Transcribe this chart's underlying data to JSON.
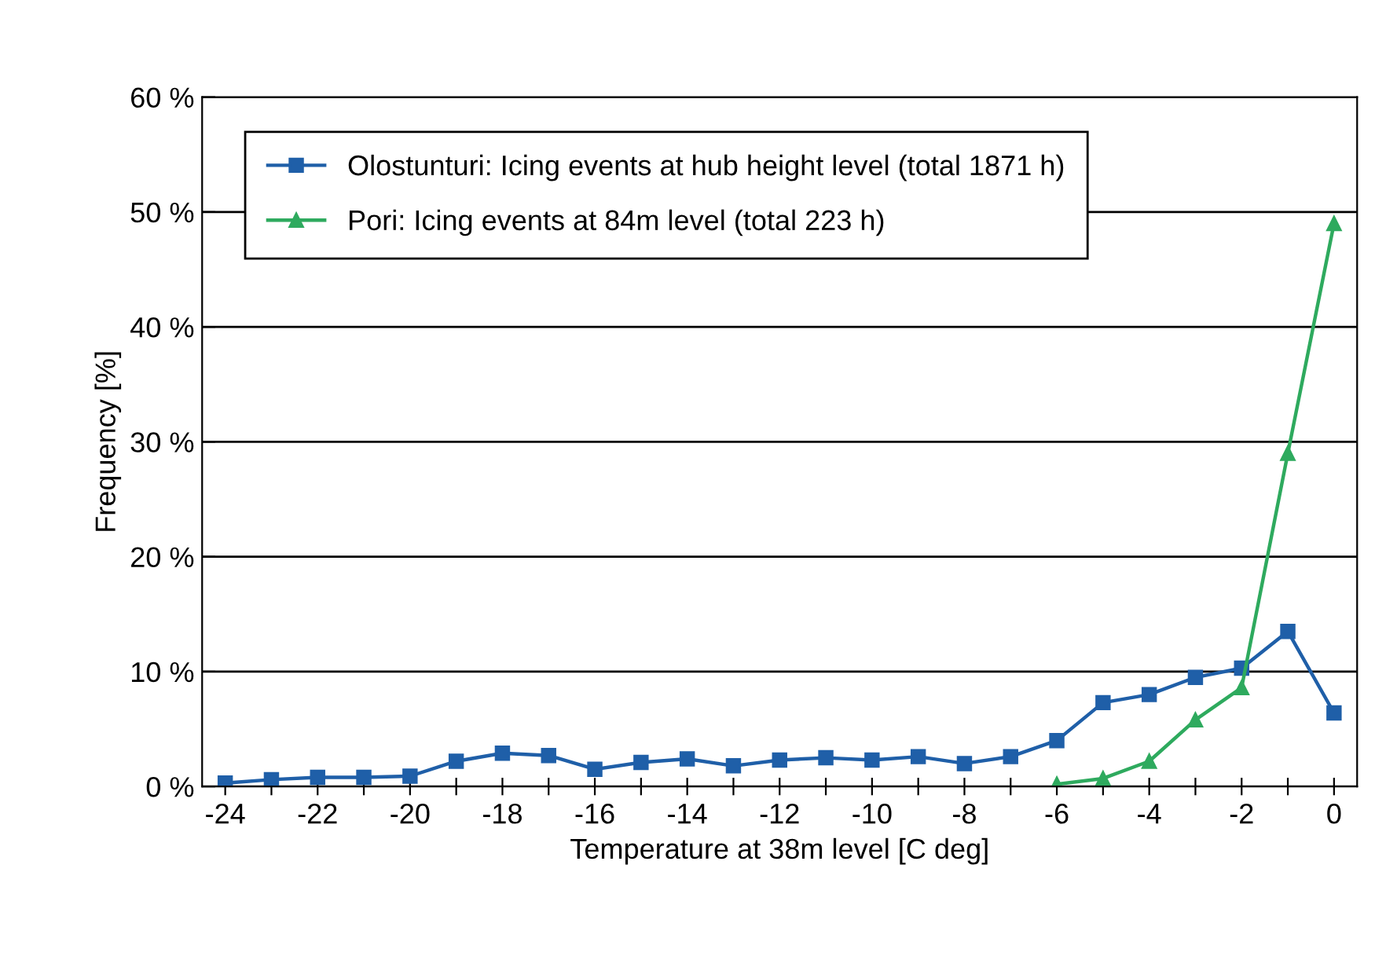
{
  "chart_data": {
    "type": "line",
    "xlabel": "Temperature at 38m level [C deg]",
    "ylabel": "Frequency [%]",
    "x": [
      -24,
      -23,
      -22,
      -21,
      -20,
      -19,
      -18,
      -17,
      -16,
      -15,
      -14,
      -13,
      -12,
      -11,
      -10,
      -9,
      -8,
      -7,
      -6,
      -5,
      -4,
      -3,
      -2,
      -1,
      0
    ],
    "series": [
      {
        "name": "Olostunturi: Icing events at hub height level (total 1871 h)",
        "color": "#1f5fa8",
        "marker": "square",
        "values": [
          0.3,
          0.6,
          0.8,
          0.8,
          0.9,
          2.2,
          2.9,
          2.7,
          1.5,
          2.1,
          2.4,
          1.8,
          2.3,
          2.5,
          2.3,
          2.6,
          2.0,
          2.6,
          4.0,
          7.3,
          8.0,
          9.5,
          10.3,
          13.5,
          6.4
        ]
      },
      {
        "name": "Pori: Icing events at 84m level (total 223 h)",
        "color": "#2eaa5e",
        "marker": "triangle",
        "x": [
          -6,
          -5,
          -4,
          -3,
          -2,
          -1,
          0
        ],
        "values": [
          0.2,
          0.7,
          2.2,
          5.8,
          8.6,
          29,
          49
        ]
      }
    ],
    "xlim": [
      -24.5,
      0.5
    ],
    "xticks": [
      -24,
      {
        "value": -23,
        "label": null
      },
      -22,
      {
        "value": -21,
        "label": null
      },
      -20,
      {
        "value": -19,
        "label": null
      },
      -18,
      {
        "value": -17,
        "label": null
      },
      -16,
      {
        "value": -15,
        "label": null
      },
      -14,
      {
        "value": -13,
        "label": null
      },
      -12,
      {
        "value": -11,
        "label": null
      },
      -10,
      {
        "value": -9,
        "label": null
      },
      -8,
      {
        "value": -7,
        "label": null
      },
      -6,
      {
        "value": -5,
        "label": null
      },
      -4,
      {
        "value": -3,
        "label": null
      },
      -2,
      {
        "value": -1,
        "label": null
      },
      0
    ],
    "ylim": [
      0,
      60
    ],
    "yticks": [
      {
        "value": 0,
        "label": "0 %"
      },
      {
        "value": 10,
        "label": "10 %"
      },
      {
        "value": 20,
        "label": "20 %"
      },
      {
        "value": 30,
        "label": "30 %"
      },
      {
        "value": 40,
        "label": "40 %"
      },
      {
        "value": 50,
        "label": "50 %"
      },
      {
        "value": 60,
        "label": "60 %"
      }
    ],
    "grid": "y",
    "legend": "top left"
  }
}
